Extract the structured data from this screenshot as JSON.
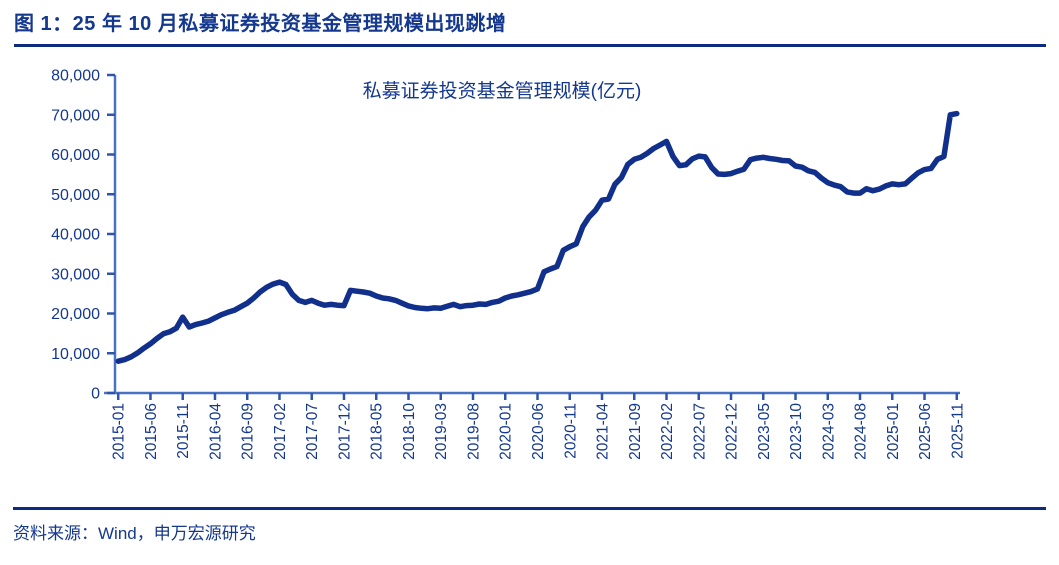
{
  "figure": {
    "title": "图 1：25 年 10 月私募证券投资基金管理规模出现跳增",
    "source": "资料来源：Wind，申万宏源研究"
  },
  "colors": {
    "navy_text": "#15388f",
    "line": "#10308c",
    "axis": "#4a72c4",
    "tick": "#2f55a8",
    "rule": "#0d2b7e"
  },
  "chart_data": {
    "type": "line",
    "title": "私募证券投资基金管理规模(亿元)",
    "ylabel": "",
    "xlabel": "",
    "ylim": [
      0,
      80000
    ],
    "grid": false,
    "legend_position": "none",
    "y_ticks": [
      0,
      10000,
      20000,
      30000,
      40000,
      50000,
      60000,
      70000,
      80000
    ],
    "y_tick_labels": [
      "0",
      "10,000",
      "20,000",
      "30,000",
      "40,000",
      "50,000",
      "60,000",
      "70,000",
      "80,000"
    ],
    "x_tick_labels": [
      "2015-01",
      "2015-06",
      "2015-11",
      "2016-04",
      "2016-09",
      "2017-02",
      "2017-07",
      "2017-12",
      "2018-05",
      "2018-10",
      "2019-03",
      "2019-08",
      "2020-01",
      "2020-06",
      "2020-11",
      "2021-04",
      "2021-09",
      "2022-02",
      "2022-07",
      "2022-12",
      "2023-05",
      "2023-10",
      "2024-03",
      "2024-08",
      "2025-01",
      "2025-06",
      "2025-11"
    ],
    "x": [
      "2015-01",
      "2015-02",
      "2015-03",
      "2015-04",
      "2015-05",
      "2015-06",
      "2015-07",
      "2015-08",
      "2015-09",
      "2015-10",
      "2015-11",
      "2015-12",
      "2016-01",
      "2016-02",
      "2016-03",
      "2016-04",
      "2016-05",
      "2016-06",
      "2016-07",
      "2016-08",
      "2016-09",
      "2016-10",
      "2016-11",
      "2016-12",
      "2017-01",
      "2017-02",
      "2017-03",
      "2017-04",
      "2017-05",
      "2017-06",
      "2017-07",
      "2017-08",
      "2017-09",
      "2017-10",
      "2017-11",
      "2017-12",
      "2018-01",
      "2018-02",
      "2018-03",
      "2018-04",
      "2018-05",
      "2018-06",
      "2018-07",
      "2018-08",
      "2018-09",
      "2018-10",
      "2018-11",
      "2018-12",
      "2019-01",
      "2019-02",
      "2019-03",
      "2019-04",
      "2019-05",
      "2019-06",
      "2019-07",
      "2019-08",
      "2019-09",
      "2019-10",
      "2019-11",
      "2019-12",
      "2020-01",
      "2020-02",
      "2020-03",
      "2020-04",
      "2020-05",
      "2020-06",
      "2020-07",
      "2020-08",
      "2020-09",
      "2020-10",
      "2020-11",
      "2020-12",
      "2021-01",
      "2021-02",
      "2021-03",
      "2021-04",
      "2021-05",
      "2021-06",
      "2021-07",
      "2021-08",
      "2021-09",
      "2021-10",
      "2021-11",
      "2021-12",
      "2022-01",
      "2022-02",
      "2022-03",
      "2022-04",
      "2022-05",
      "2022-06",
      "2022-07",
      "2022-08",
      "2022-09",
      "2022-10",
      "2022-11",
      "2022-12",
      "2023-01",
      "2023-02",
      "2023-03",
      "2023-04",
      "2023-05",
      "2023-06",
      "2023-07",
      "2023-08",
      "2023-09",
      "2023-10",
      "2023-11",
      "2023-12",
      "2024-01",
      "2024-02",
      "2024-03",
      "2024-04",
      "2024-05",
      "2024-06",
      "2024-07",
      "2024-08",
      "2024-09",
      "2024-10",
      "2024-11",
      "2024-12",
      "2025-01",
      "2025-02",
      "2025-03",
      "2025-04",
      "2025-05",
      "2025-06",
      "2025-07",
      "2025-08",
      "2025-09",
      "2025-10",
      "2025-11"
    ],
    "values": [
      8000,
      8400,
      9100,
      10100,
      11300,
      12400,
      13700,
      14900,
      15400,
      16300,
      19100,
      16600,
      17200,
      17600,
      18100,
      18900,
      19700,
      20300,
      20800,
      21700,
      22600,
      23900,
      25400,
      26600,
      27400,
      27900,
      27300,
      24800,
      23300,
      22800,
      23300,
      22600,
      22100,
      22300,
      22100,
      22000,
      25800,
      25600,
      25400,
      25100,
      24400,
      23900,
      23700,
      23300,
      22600,
      21900,
      21500,
      21300,
      21200,
      21400,
      21300,
      21800,
      22300,
      21700,
      22000,
      22100,
      22400,
      22300,
      22800,
      23100,
      23900,
      24400,
      24700,
      25100,
      25500,
      26200,
      30500,
      31200,
      31800,
      35900,
      36800,
      37500,
      41800,
      44300,
      46000,
      48500,
      48800,
      52500,
      54200,
      57500,
      58800,
      59300,
      60300,
      61500,
      62400,
      63300,
      59500,
      57200,
      57400,
      58900,
      59600,
      59400,
      56700,
      55100,
      55000,
      55200,
      55800,
      56300,
      58700,
      59100,
      59300,
      59000,
      58800,
      58500,
      58400,
      57100,
      56800,
      55900,
      55500,
      54100,
      52900,
      52300,
      51900,
      50600,
      50300,
      50300,
      51400,
      50900,
      51300,
      52100,
      52600,
      52400,
      52600,
      54000,
      55400,
      56200,
      56500,
      58800,
      59500,
      70000,
      70300
    ]
  }
}
